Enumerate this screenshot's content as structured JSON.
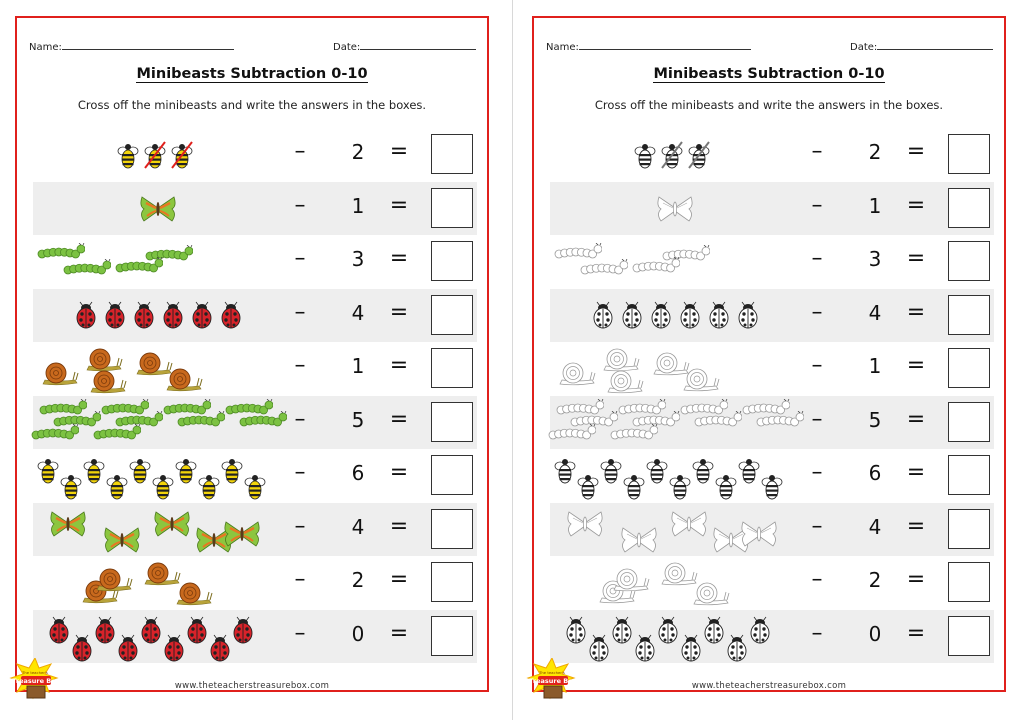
{
  "worksheet": {
    "name_label": "Name:",
    "date_label": "Date:",
    "title": "Minibeasts Subtraction 0-10",
    "instructions": "Cross off the minibeasts and write the answers in the boxes.",
    "minus_sign": "–",
    "equals_sign": "=",
    "footer_url": "www.theteacherstreasurebox.com",
    "logo_text_top": "The teacher's",
    "logo_text_main": "Treasure Box"
  },
  "rows": [
    {
      "creature": "bee",
      "count": 3,
      "crossed": 2,
      "subtract": "2"
    },
    {
      "creature": "butterfly",
      "count": 1,
      "crossed": 0,
      "subtract": "1"
    },
    {
      "creature": "caterpillar",
      "count": 4,
      "crossed": 0,
      "subtract": "3"
    },
    {
      "creature": "ladybird",
      "count": 6,
      "crossed": 0,
      "subtract": "4"
    },
    {
      "creature": "snail",
      "count": 5,
      "crossed": 0,
      "subtract": "1"
    },
    {
      "creature": "caterpillar",
      "count": 10,
      "crossed": 0,
      "subtract": "5"
    },
    {
      "creature": "bee",
      "count": 10,
      "crossed": 0,
      "subtract": "6"
    },
    {
      "creature": "butterfly",
      "count": 5,
      "crossed": 0,
      "subtract": "4"
    },
    {
      "creature": "snail",
      "count": 4,
      "crossed": 0,
      "subtract": "2"
    },
    {
      "creature": "ladybird",
      "count": 9,
      "crossed": 0,
      "subtract": "0"
    }
  ],
  "colors": {
    "border": "#e0201c",
    "bee_yellow": "#f2d40a",
    "ladybird_red": "#d8232a",
    "caterpillar_green": "#7cc242",
    "snail_shell": "#c8691d",
    "butterfly_green": "#8cc63f",
    "butterfly_orange": "#e87722"
  }
}
